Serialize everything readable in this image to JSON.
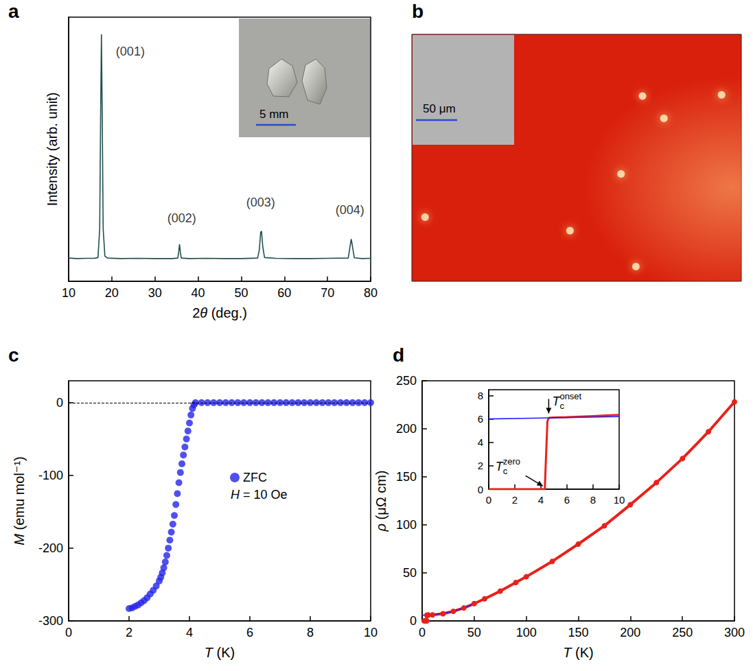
{
  "chart_data": [
    {
      "panel": "a",
      "type": "line",
      "x_label": "2θ (deg.)",
      "y_label": "Intensity (arb. unit)",
      "color": "#1f4f4d",
      "x": [
        10,
        12,
        14,
        16,
        16.8,
        17.2,
        17.4,
        17.6,
        17.8,
        18.0,
        18.4,
        19,
        22,
        26,
        30,
        34,
        35.3,
        35.5,
        35.7,
        35.9,
        36.1,
        38,
        42,
        46,
        50,
        53.8,
        54.2,
        54.5,
        54.7,
        55.0,
        55.4,
        58,
        62,
        66,
        70,
        74.8,
        75.2,
        75.5,
        75.8,
        76.2,
        78,
        80
      ],
      "values": [
        0.088,
        0.086,
        0.087,
        0.087,
        0.09,
        0.2,
        0.6,
        0.935,
        0.6,
        0.2,
        0.095,
        0.088,
        0.086,
        0.087,
        0.086,
        0.086,
        0.088,
        0.11,
        0.14,
        0.11,
        0.088,
        0.086,
        0.087,
        0.086,
        0.086,
        0.088,
        0.12,
        0.185,
        0.19,
        0.13,
        0.09,
        0.087,
        0.086,
        0.086,
        0.087,
        0.088,
        0.13,
        0.16,
        0.13,
        0.089,
        0.086,
        0.087
      ],
      "xlim": [
        10,
        80
      ],
      "xticks": [
        10,
        20,
        30,
        40,
        50,
        60,
        70,
        80
      ],
      "ylim": [
        0,
        1
      ],
      "tick_labels": "x",
      "annotations": [
        {
          "text": "(001)",
          "x": 24.3,
          "y": 0.87
        },
        {
          "text": "(002)",
          "x": 36.2,
          "y": 0.24
        },
        {
          "text": "(003)",
          "x": 54.5,
          "y": 0.3
        },
        {
          "text": "(004)",
          "x": 75.2,
          "y": 0.27
        }
      ],
      "inset": {
        "scale_bar": "5 mm"
      }
    },
    {
      "panel": "b",
      "type": "image",
      "color": "#d9200c",
      "xlim": [
        0,
        1
      ],
      "ylim": [
        0,
        1
      ],
      "tick_labels": false,
      "series": [
        {
          "color": "#fff4c2",
          "marker": "circle",
          "x": [
            0.7,
            0.765,
            0.94,
            0.635,
            0.48,
            0.04,
            0.68
          ],
          "values": [
            0.25,
            0.34,
            0.245,
            0.565,
            0.795,
            0.74,
            0.94
          ]
        }
      ],
      "inset": {
        "scale_bar": "50 μm"
      }
    },
    {
      "panel": "c",
      "type": "scatter",
      "x_label": "T (K)",
      "y_label": "M (emu mol⁻¹)",
      "series": [
        {
          "name": "ZFC",
          "color": "#2424e8",
          "marker": "circle",
          "x": [
            2.0,
            2.1,
            2.2,
            2.3,
            2.4,
            2.5,
            2.6,
            2.7,
            2.8,
            2.9,
            3.0,
            3.05,
            3.1,
            3.15,
            3.2,
            3.25,
            3.3,
            3.35,
            3.4,
            3.45,
            3.5,
            3.55,
            3.6,
            3.65,
            3.7,
            3.75,
            3.8,
            3.85,
            3.9,
            3.95,
            4.0,
            4.05,
            4.1,
            4.15,
            4.2,
            4.4,
            4.6,
            4.8,
            5.0,
            5.2,
            5.4,
            5.6,
            5.8,
            6.0,
            6.2,
            6.4,
            6.6,
            6.8,
            7.0,
            7.2,
            7.4,
            7.6,
            7.8,
            8.0,
            8.2,
            8.4,
            8.6,
            8.8,
            9.0,
            9.2,
            9.4,
            9.6,
            9.8,
            10.0
          ],
          "values": [
            -283,
            -282,
            -280,
            -278,
            -275,
            -272,
            -268,
            -263,
            -258,
            -252,
            -245,
            -240,
            -234,
            -227,
            -219,
            -210,
            -200,
            -189,
            -178,
            -167,
            -155,
            -140,
            -125,
            -110,
            -96,
            -84,
            -72,
            -61,
            -50,
            -39,
            -28,
            -17,
            -8,
            -3,
            0,
            0,
            0,
            0,
            0,
            0,
            0,
            0,
            0,
            0,
            0,
            0,
            0,
            0,
            0,
            0,
            0,
            0,
            0,
            0,
            0,
            0,
            0,
            0,
            0,
            0,
            0,
            0,
            0,
            0
          ]
        }
      ],
      "xlim": [
        0,
        10
      ],
      "xticks": [
        0,
        2,
        4,
        6,
        8,
        10
      ],
      "ylim": [
        -300,
        30
      ],
      "yticks": [
        -300,
        -200,
        -100,
        0
      ],
      "legend": "right",
      "annotations": [
        {
          "text": "H = 10 Oe"
        }
      ],
      "hline": {
        "y": 0,
        "line_style": "dashed"
      }
    },
    {
      "panel": "d",
      "type": "line",
      "x_label": "T (K)",
      "y_label": "ρ (μΩ cm)",
      "series": [
        {
          "color": "#e8211b",
          "marker": "circle",
          "x": [
            2,
            3,
            4,
            4.4,
            4.6,
            6,
            10,
            20,
            30,
            40,
            50,
            60,
            75,
            90,
            100,
            125,
            150,
            175,
            200,
            225,
            250,
            275,
            300
          ],
          "values": [
            0,
            0,
            0,
            0,
            6.1,
            6.15,
            6.3,
            7.5,
            10,
            13.5,
            18,
            23,
            31,
            40,
            46,
            62,
            80,
            99,
            121,
            144,
            169,
            197,
            228
          ]
        },
        {
          "color": "#1c1cff",
          "line_style": "solid",
          "x": [
            0,
            10,
            20,
            30,
            40,
            50
          ],
          "values": [
            6.0,
            6.4,
            7.8,
            10.2,
            13.6,
            18
          ]
        }
      ],
      "xlim": [
        0,
        300
      ],
      "xticks": [
        0,
        50,
        100,
        150,
        200,
        250,
        300
      ],
      "ylim": [
        0,
        250
      ],
      "yticks": [
        0,
        50,
        100,
        150,
        200,
        250
      ],
      "inset": {
        "xlim": [
          0,
          10
        ],
        "xticks": [
          0,
          2,
          4,
          6,
          8,
          10
        ],
        "ylim": [
          0,
          8.5
        ],
        "yticks": [
          0,
          2,
          4,
          6,
          8
        ],
        "series": [
          {
            "color": "#e8211b",
            "line_style": "solid",
            "x": [
              0,
              1,
              2,
              3,
              4,
              4.3,
              4.4,
              4.5,
              4.6,
              5,
              6,
              7,
              8,
              9,
              10
            ],
            "values": [
              0,
              0,
              0,
              0,
              0,
              0,
              3,
              5.8,
              6.1,
              6.12,
              6.15,
              6.2,
              6.25,
              6.3,
              6.35
            ]
          },
          {
            "color": "#1c1cff",
            "line_style": "solid",
            "x": [
              0,
              10
            ],
            "values": [
              6.0,
              6.2
            ]
          }
        ],
        "annotations": [
          {
            "base": "T",
            "sub": "c",
            "sup": "onset",
            "x": 4.6,
            "y": 6.3
          },
          {
            "base": "T",
            "sub": "c",
            "sup": "zero",
            "x": 4.3,
            "y": 0.1
          }
        ]
      }
    }
  ]
}
